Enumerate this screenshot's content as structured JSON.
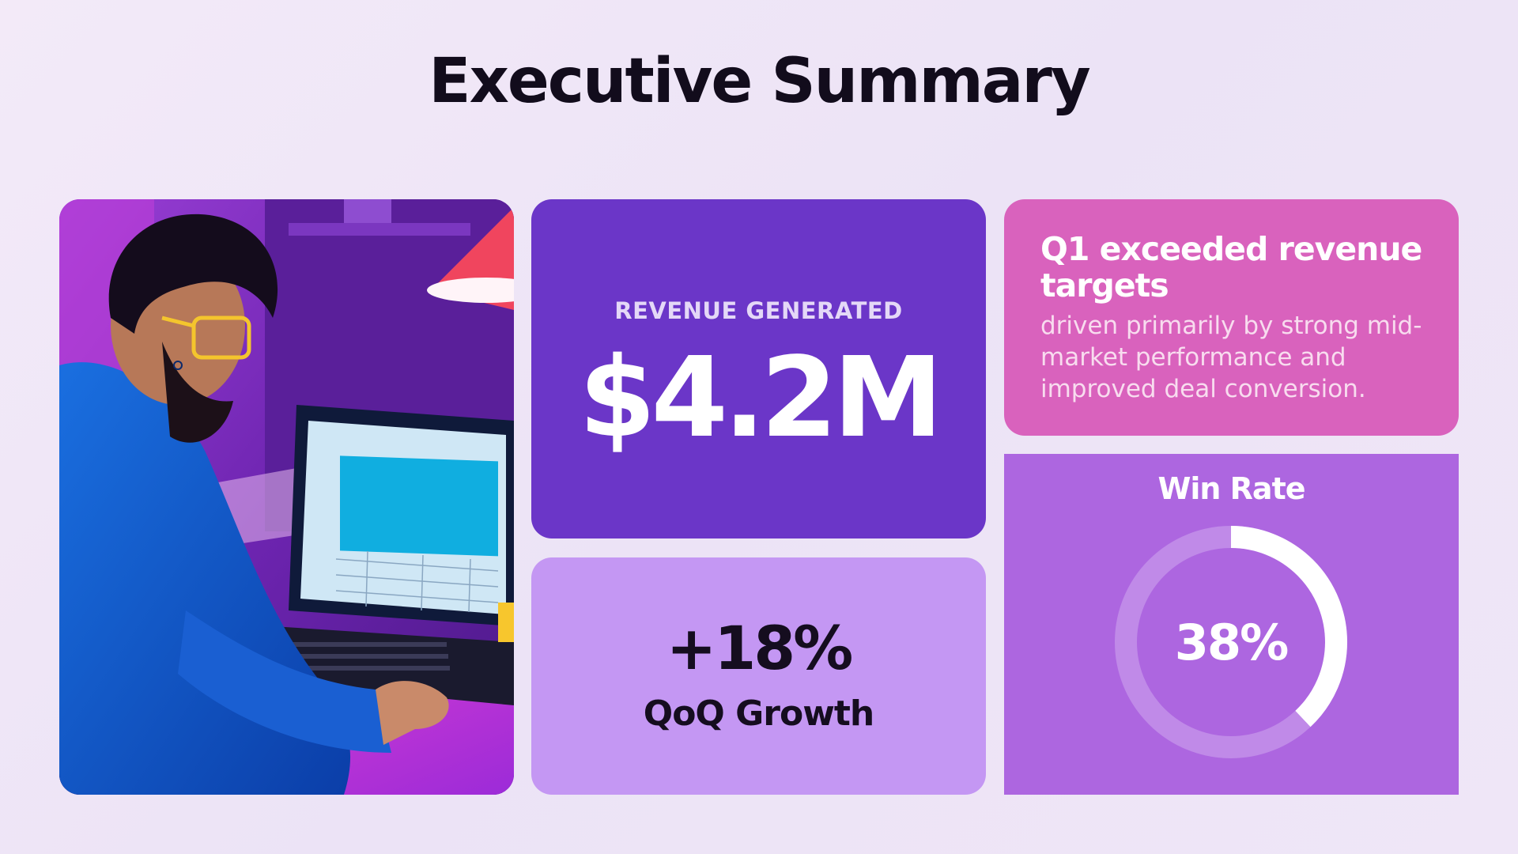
{
  "title": "Executive Summary",
  "illustration": {
    "icon": "person-at-laptop-illustration"
  },
  "revenue": {
    "label": "REVENUE GENERATED",
    "value": "$4.2M"
  },
  "growth": {
    "value": "+18%",
    "label": "QoQ Growth"
  },
  "insight": {
    "heading": "Q1 exceeded revenue targets",
    "body": "driven primarily by strong mid-market performance and improved deal conversion."
  },
  "win_rate": {
    "label": "Win Rate",
    "display": "38%",
    "fraction": 0.38
  },
  "colors": {
    "revenue_card": "#6b36c8",
    "growth_card": "#c497f3",
    "insight_card": "#d962bd",
    "win_rate_card": "#ad66e0",
    "ring_track": "#c08ae8",
    "ring_fill": "#ffffff"
  }
}
